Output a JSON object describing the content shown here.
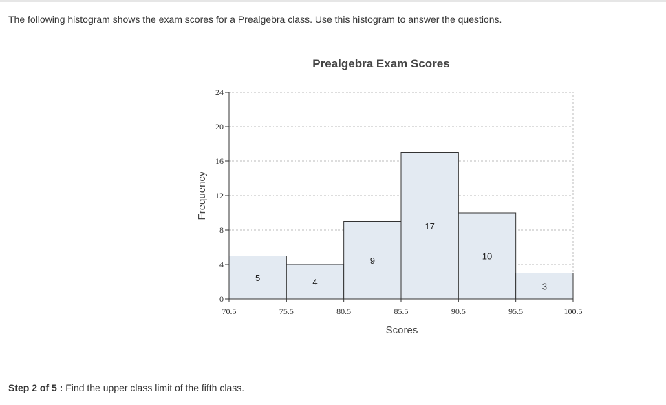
{
  "intro_text": "The following histogram shows the exam scores for a Prealgebra class. Use this histogram to answer the questions.",
  "step": {
    "prefix": "Step 2 of 5 :",
    "text": "Find the upper class limit of the fifth class."
  },
  "chart_data": {
    "type": "bar",
    "title": "Prealgebra Exam Scores",
    "xlabel": "Scores",
    "ylabel": "Frequency",
    "bin_edges": [
      "70.5",
      "75.5",
      "80.5",
      "85.5",
      "90.5",
      "95.5",
      "100.5"
    ],
    "values": [
      5,
      4,
      9,
      17,
      10,
      3
    ],
    "y_ticks": [
      "0",
      "4",
      "8",
      "12",
      "16",
      "20",
      "24"
    ],
    "ylim": [
      0,
      24
    ],
    "xlim": [
      70.5,
      100.5
    ],
    "grid": true,
    "colors": {
      "bar_fill": "#e3eaf2",
      "bar_stroke": "#333333",
      "grid": "#bbbbbb"
    }
  }
}
